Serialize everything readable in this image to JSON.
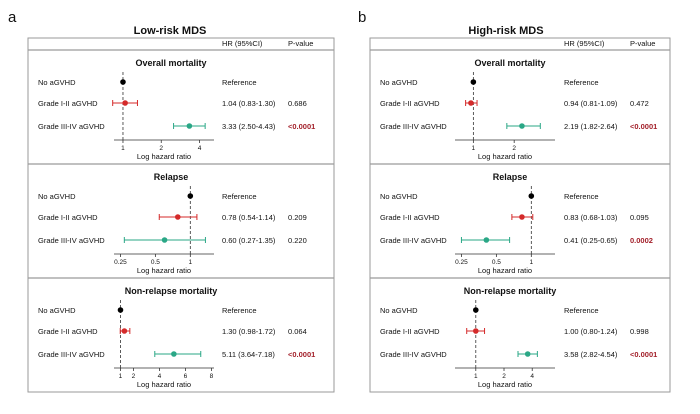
{
  "panels_meta": {
    "hr_header": "HR (95%CI)",
    "p_header": "P-value",
    "axis_label": "Log hazard ratio",
    "reference_text": "Reference"
  },
  "colors": {
    "reference": "#000000",
    "grade_i_ii": "#d42a2a",
    "grade_iii_iv": "#2aa786",
    "significant_p": "#a3202a",
    "border": "#9a9a9a",
    "dashed": "#333333"
  },
  "chart_data": [
    {
      "letter": "a",
      "title": "Low-risk MDS",
      "type": "forest",
      "sections": [
        {
          "title": "Overall mortality",
          "scale": "log",
          "xlim": [
            0.85,
            5.2
          ],
          "ticks": [
            1,
            2,
            4
          ],
          "tick_labels": [
            "1",
            "2",
            "4"
          ],
          "rows": [
            {
              "label": "No aGVHD",
              "hr": 1.0,
              "lo": null,
              "hi": null,
              "hr_text": "Reference",
              "p": "",
              "group": "reference",
              "significant": false
            },
            {
              "label": "Grade I-II aGVHD",
              "hr": 1.04,
              "lo": 0.83,
              "hi": 1.3,
              "hr_text": "1.04 (0.83-1.30)",
              "p": "0.686",
              "group": "grade_i_ii",
              "significant": false
            },
            {
              "label": "Grade III-IV aGVHD",
              "hr": 3.33,
              "lo": 2.5,
              "hi": 4.43,
              "hr_text": "3.33 (2.50-4.43)",
              "p": "<0.0001",
              "group": "grade_iii_iv",
              "significant": true
            }
          ]
        },
        {
          "title": "Relapse",
          "scale": "log",
          "xlim": [
            0.22,
            1.6
          ],
          "ticks": [
            0.25,
            0.5,
            1
          ],
          "tick_labels": [
            "0.25",
            "0.5",
            "1"
          ],
          "rows": [
            {
              "label": "No aGVHD",
              "hr": 1.0,
              "lo": null,
              "hi": null,
              "hr_text": "Reference",
              "p": "",
              "group": "reference",
              "significant": false
            },
            {
              "label": "Grade I-II aGVHD",
              "hr": 0.78,
              "lo": 0.54,
              "hi": 1.14,
              "hr_text": "0.78 (0.54-1.14)",
              "p": "0.209",
              "group": "grade_i_ii",
              "significant": false
            },
            {
              "label": "Grade III-IV aGVHD",
              "hr": 0.6,
              "lo": 0.27,
              "hi": 1.35,
              "hr_text": "0.60 (0.27-1.35)",
              "p": "0.220",
              "group": "grade_iii_iv",
              "significant": false
            }
          ]
        },
        {
          "title": "Non-relapse mortality",
          "scale": "linear",
          "xlim": [
            0.5,
            8.2
          ],
          "ticks": [
            1,
            2,
            4,
            6,
            8
          ],
          "tick_labels": [
            "1",
            "2",
            "4",
            "6",
            "8"
          ],
          "rows": [
            {
              "label": "No aGVHD",
              "hr": 1.0,
              "lo": null,
              "hi": null,
              "hr_text": "Reference",
              "p": "",
              "group": "reference",
              "significant": false
            },
            {
              "label": "Grade I-II aGVHD",
              "hr": 1.3,
              "lo": 0.98,
              "hi": 1.72,
              "hr_text": "1.30 (0.98-1.72)",
              "p": "0.064",
              "group": "grade_i_ii",
              "significant": false
            },
            {
              "label": "Grade III-IV aGVHD",
              "hr": 5.11,
              "lo": 3.64,
              "hi": 7.18,
              "hr_text": "5.11 (3.64-7.18)",
              "p": "<0.0001",
              "group": "grade_iii_iv",
              "significant": true
            }
          ]
        }
      ]
    },
    {
      "letter": "b",
      "title": "High-risk MDS",
      "type": "forest",
      "sections": [
        {
          "title": "Overall mortality",
          "scale": "linear",
          "xlim": [
            0.55,
            3.0
          ],
          "ticks": [
            1,
            2
          ],
          "tick_labels": [
            "1",
            "2"
          ],
          "rows": [
            {
              "label": "No aGVHD",
              "hr": 1.0,
              "lo": null,
              "hi": null,
              "hr_text": "Reference",
              "p": "",
              "group": "reference",
              "significant": false
            },
            {
              "label": "Grade I-II aGVHD",
              "hr": 0.94,
              "lo": 0.81,
              "hi": 1.09,
              "hr_text": "0.94 (0.81-1.09)",
              "p": "0.472",
              "group": "grade_i_ii",
              "significant": false
            },
            {
              "label": "Grade III-IV aGVHD",
              "hr": 2.19,
              "lo": 1.82,
              "hi": 2.64,
              "hr_text": "2.19 (1.82-2.64)",
              "p": "<0.0001",
              "group": "grade_iii_iv",
              "significant": true
            }
          ]
        },
        {
          "title": "Relapse",
          "scale": "log",
          "xlim": [
            0.22,
            1.6
          ],
          "ticks": [
            0.25,
            0.5,
            1
          ],
          "tick_labels": [
            "0.25",
            "0.5",
            "1"
          ],
          "rows": [
            {
              "label": "No aGVHD",
              "hr": 1.0,
              "lo": null,
              "hi": null,
              "hr_text": "Reference",
              "p": "",
              "group": "reference",
              "significant": false
            },
            {
              "label": "Grade I-II aGVHD",
              "hr": 0.83,
              "lo": 0.68,
              "hi": 1.03,
              "hr_text": "0.83 (0.68-1.03)",
              "p": "0.095",
              "group": "grade_i_ii",
              "significant": false
            },
            {
              "label": "Grade III-IV aGVHD",
              "hr": 0.41,
              "lo": 0.25,
              "hi": 0.65,
              "hr_text": "0.41 (0.25-0.65)",
              "p": "0.0002",
              "group": "grade_iii_iv",
              "significant": true
            }
          ]
        },
        {
          "title": "Non-relapse mortality",
          "scale": "log",
          "xlim": [
            0.6,
            7.0
          ],
          "ticks": [
            1,
            2,
            4
          ],
          "tick_labels": [
            "1",
            "2",
            "4"
          ],
          "rows": [
            {
              "label": "No aGVHD",
              "hr": 1.0,
              "lo": null,
              "hi": null,
              "hr_text": "Reference",
              "p": "",
              "group": "reference",
              "significant": false
            },
            {
              "label": "Grade I-II aGVHD",
              "hr": 1.0,
              "lo": 0.8,
              "hi": 1.24,
              "hr_text": "1.00 (0.80-1.24)",
              "p": "0.998",
              "group": "grade_i_ii",
              "significant": false
            },
            {
              "label": "Grade III-IV aGVHD",
              "hr": 3.58,
              "lo": 2.82,
              "hi": 4.54,
              "hr_text": "3.58 (2.82-4.54)",
              "p": "<0.0001",
              "group": "grade_iii_iv",
              "significant": true
            }
          ]
        }
      ]
    }
  ]
}
